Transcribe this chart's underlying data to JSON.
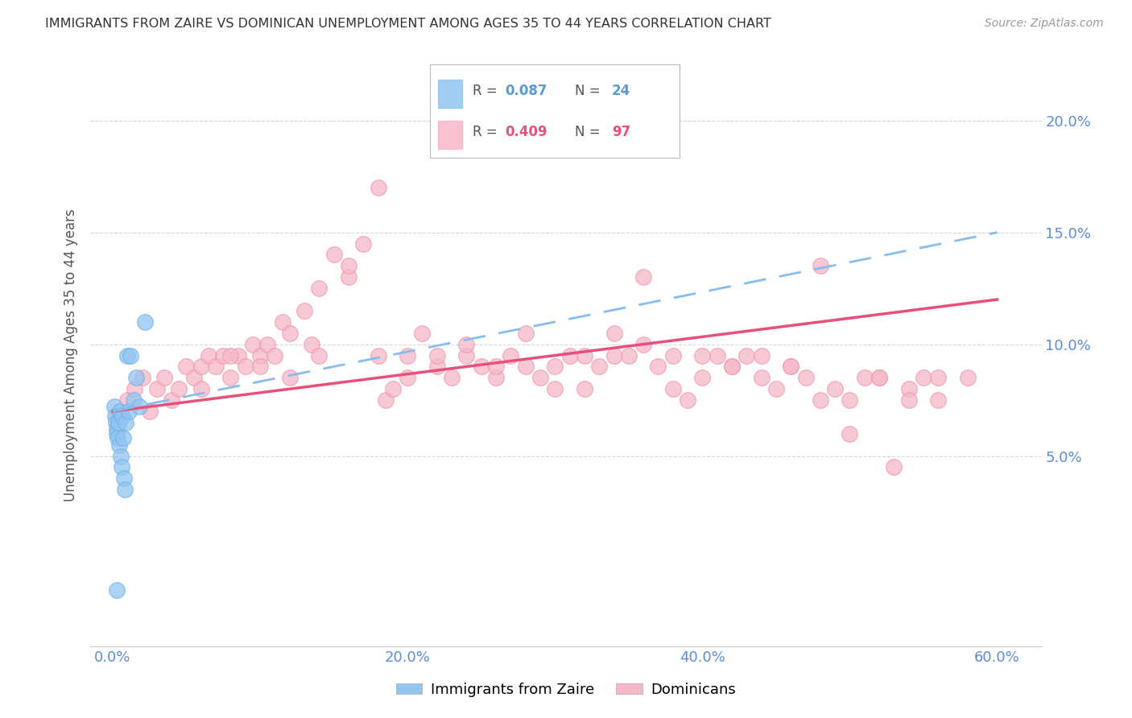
{
  "title": "IMMIGRANTS FROM ZAIRE VS DOMINICAN UNEMPLOYMENT AMONG AGES 35 TO 44 YEARS CORRELATION CHART",
  "source": "Source: ZipAtlas.com",
  "ylabel": "Unemployment Among Ages 35 to 44 years",
  "xlabel_ticks": [
    "0.0%",
    "20.0%",
    "40.0%",
    "60.0%"
  ],
  "xlabel_vals": [
    0.0,
    20.0,
    40.0,
    60.0
  ],
  "ylabel_ticks": [
    "5.0%",
    "10.0%",
    "15.0%",
    "20.0%"
  ],
  "ylabel_vals": [
    5.0,
    10.0,
    15.0,
    20.0
  ],
  "xlim": [
    -1.5,
    63.0
  ],
  "ylim": [
    -3.5,
    22.5
  ],
  "color_blue": "#92c5f0",
  "color_blue_edge": "#6aaee8",
  "color_pink": "#f5b8c8",
  "color_pink_edge": "#f090a8",
  "color_blue_line": "#88bbee",
  "color_pink_line": "#e8507a",
  "color_axis_text": "#5b8dd9",
  "color_grid": "#d8d8d8",
  "color_title": "#333333",
  "color_source": "#999999",
  "zaire_x": [
    0.1,
    0.15,
    0.2,
    0.25,
    0.3,
    0.35,
    0.4,
    0.45,
    0.5,
    0.55,
    0.6,
    0.65,
    0.7,
    0.75,
    0.8,
    0.9,
    1.0,
    1.1,
    1.2,
    1.4,
    1.6,
    1.8,
    2.2,
    0.3
  ],
  "zaire_y": [
    7.2,
    6.8,
    6.5,
    6.2,
    6.0,
    5.8,
    6.5,
    5.5,
    7.0,
    5.0,
    4.5,
    6.8,
    5.8,
    4.0,
    3.5,
    6.5,
    9.5,
    7.0,
    9.5,
    7.5,
    8.5,
    7.2,
    11.0,
    -1.0
  ],
  "dominican_x": [
    0.5,
    1.0,
    1.5,
    2.0,
    2.5,
    3.0,
    3.5,
    4.0,
    4.5,
    5.0,
    5.5,
    6.0,
    6.5,
    7.0,
    7.5,
    8.0,
    8.5,
    9.0,
    9.5,
    10.0,
    10.5,
    11.0,
    11.5,
    12.0,
    13.0,
    13.5,
    14.0,
    15.0,
    16.0,
    17.0,
    18.0,
    18.5,
    19.0,
    20.0,
    21.0,
    22.0,
    23.0,
    24.0,
    25.0,
    26.0,
    27.0,
    28.0,
    29.0,
    30.0,
    31.0,
    32.0,
    33.0,
    34.0,
    35.0,
    36.0,
    37.0,
    38.0,
    39.0,
    40.0,
    41.0,
    42.0,
    43.0,
    44.0,
    45.0,
    46.0,
    47.0,
    48.0,
    49.0,
    50.0,
    51.0,
    52.0,
    53.0,
    54.0,
    55.0,
    56.0,
    6.0,
    8.0,
    10.0,
    12.0,
    14.0,
    16.0,
    18.0,
    20.0,
    22.0,
    24.0,
    26.0,
    28.0,
    30.0,
    32.0,
    34.0,
    36.0,
    38.0,
    40.0,
    42.0,
    44.0,
    46.0,
    48.0,
    50.0,
    52.0,
    54.0,
    56.0,
    58.0
  ],
  "dominican_y": [
    7.0,
    7.5,
    8.0,
    8.5,
    7.0,
    8.0,
    8.5,
    7.5,
    8.0,
    9.0,
    8.5,
    9.0,
    9.5,
    9.0,
    9.5,
    8.5,
    9.5,
    9.0,
    10.0,
    9.5,
    10.0,
    9.5,
    11.0,
    10.5,
    11.5,
    10.0,
    12.5,
    14.0,
    13.0,
    14.5,
    9.5,
    7.5,
    8.0,
    9.5,
    10.5,
    9.0,
    8.5,
    9.5,
    9.0,
    8.5,
    9.5,
    9.0,
    8.5,
    8.0,
    9.5,
    8.0,
    9.0,
    9.5,
    9.5,
    10.0,
    9.0,
    9.5,
    7.5,
    8.5,
    9.5,
    9.0,
    9.5,
    8.5,
    8.0,
    9.0,
    8.5,
    7.5,
    8.0,
    6.0,
    8.5,
    8.5,
    4.5,
    8.0,
    8.5,
    7.5,
    8.0,
    9.5,
    9.0,
    8.5,
    9.5,
    13.5,
    17.0,
    8.5,
    9.5,
    10.0,
    9.0,
    10.5,
    9.0,
    9.5,
    10.5,
    13.0,
    8.0,
    9.5,
    9.0,
    9.5,
    9.0,
    13.5,
    7.5,
    8.5,
    7.5,
    8.5,
    8.5
  ],
  "blue_line_x": [
    0.0,
    60.0
  ],
  "blue_line_y": [
    7.0,
    15.0
  ],
  "pink_line_x": [
    0.0,
    60.0
  ],
  "pink_line_y": [
    7.0,
    12.0
  ],
  "legend_items": [
    {
      "color": "#92c5f0",
      "r_val": "0.087",
      "n_val": "24",
      "r_color": "#5b9bd5",
      "n_color": "#5b9bd5"
    },
    {
      "color": "#f5b8c8",
      "r_val": "0.409",
      "n_val": "97",
      "r_color": "#e8507a",
      "n_color": "#e8507a"
    }
  ],
  "bottom_legend": [
    {
      "label": "Immigrants from Zaire",
      "color": "#92c5f0"
    },
    {
      "label": "Dominicans",
      "color": "#f5b8c8"
    }
  ]
}
